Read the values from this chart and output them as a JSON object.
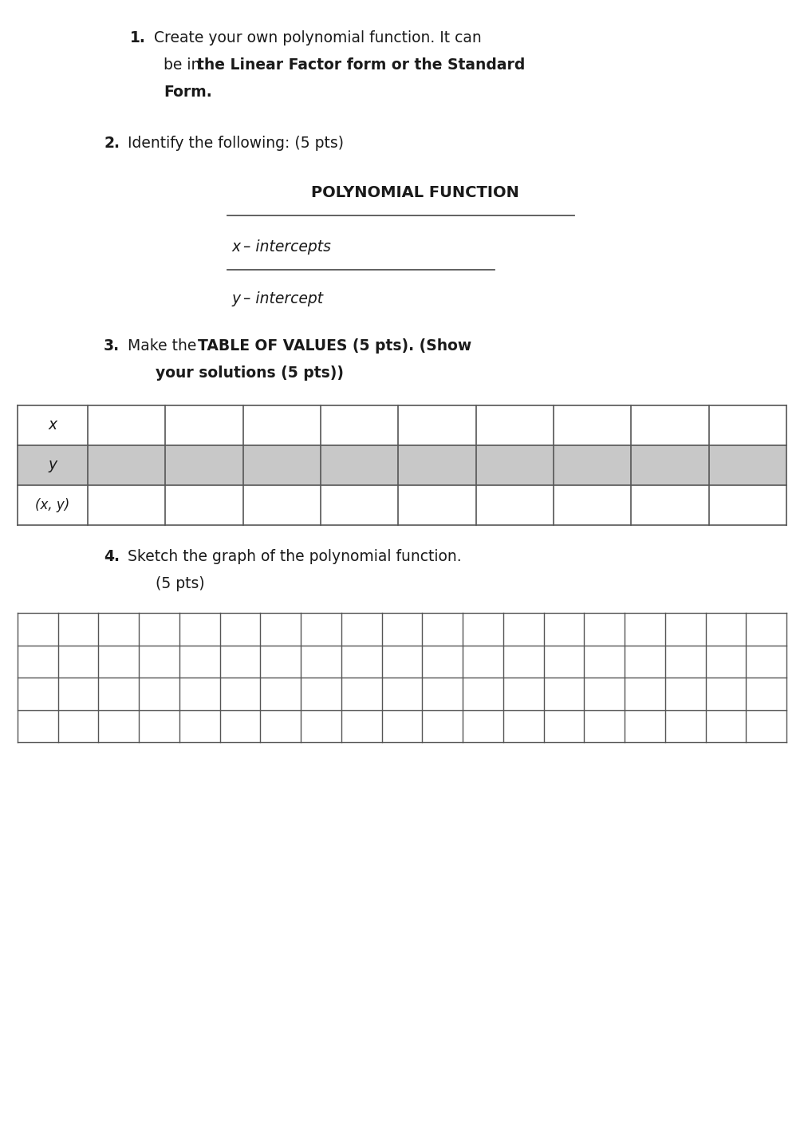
{
  "background_color": "#ffffff",
  "page_width": 10.08,
  "page_height": 14.21,
  "text_color": "#1a1a1a",
  "line_color": "#555555",
  "gray_fill": "#c8c8c8",
  "table_row_labels": [
    "x",
    "y",
    "(x, y)"
  ],
  "table_num_data_cols": 9,
  "graph_rows": 4,
  "graph_cols": 19
}
